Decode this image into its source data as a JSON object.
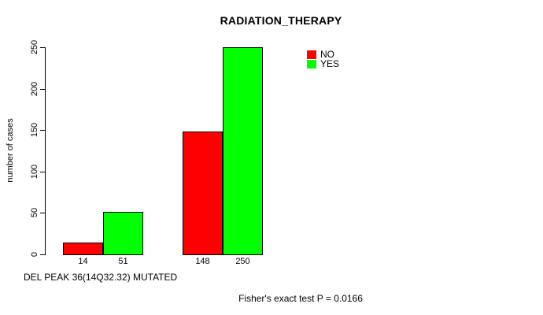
{
  "chart_data": {
    "type": "bar",
    "title": "RADIATION_THERAPY",
    "ylabel": "number of cases",
    "xlabel": "DEL PEAK 36(14Q32.32) MUTATED",
    "annotation": "Fisher's exact test P = 0.0166",
    "ylim": [
      0,
      250
    ],
    "yticks": [
      0,
      50,
      100,
      150,
      200,
      250
    ],
    "grid": false,
    "legend": {
      "position": "top-right",
      "items": [
        {
          "label": "NO",
          "color": "#ff0000"
        },
        {
          "label": "YES",
          "color": "#00ff00"
        }
      ]
    },
    "groups": [
      {
        "bars": [
          {
            "series": "NO",
            "value": 14,
            "label": "14",
            "color": "#ff0000"
          },
          {
            "series": "YES",
            "value": 51,
            "label": "51",
            "color": "#00ff00"
          }
        ]
      },
      {
        "bars": [
          {
            "series": "NO",
            "value": 148,
            "label": "148",
            "color": "#ff0000"
          },
          {
            "series": "YES",
            "value": 250,
            "label": "250",
            "color": "#00ff00"
          }
        ]
      }
    ]
  },
  "colors": {
    "background": "#ffffff",
    "axis": "#000000",
    "text": "#000000",
    "bar_border": "#000000"
  }
}
